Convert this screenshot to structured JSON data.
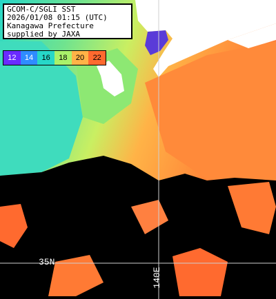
{
  "header": {
    "line1": "GCOM-C/SGLI SST",
    "line2": "2026/01/08 01:15 (UTC)",
    "line3": "Kanagawa Prefecture",
    "line4": "supplied by JAXA"
  },
  "scale": {
    "items": [
      {
        "label": "12",
        "color": "#6a2cff",
        "text_color": "#ffffff"
      },
      {
        "label": "14",
        "color": "#2f8cff",
        "text_color": "#ffffff"
      },
      {
        "label": "16",
        "color": "#27d7c8",
        "text_color": "#000000"
      },
      {
        "label": "18",
        "color": "#a9f16a",
        "text_color": "#000000"
      },
      {
        "label": "20",
        "color": "#ffb347",
        "text_color": "#000000"
      },
      {
        "label": "22",
        "color": "#ff6a2f",
        "text_color": "#000000"
      }
    ]
  },
  "labels": {
    "lon": "140E",
    "lat": "35N"
  },
  "colors": {
    "land": "#ffffff",
    "cloud": "#000000",
    "grid": "#cfcfcf"
  }
}
